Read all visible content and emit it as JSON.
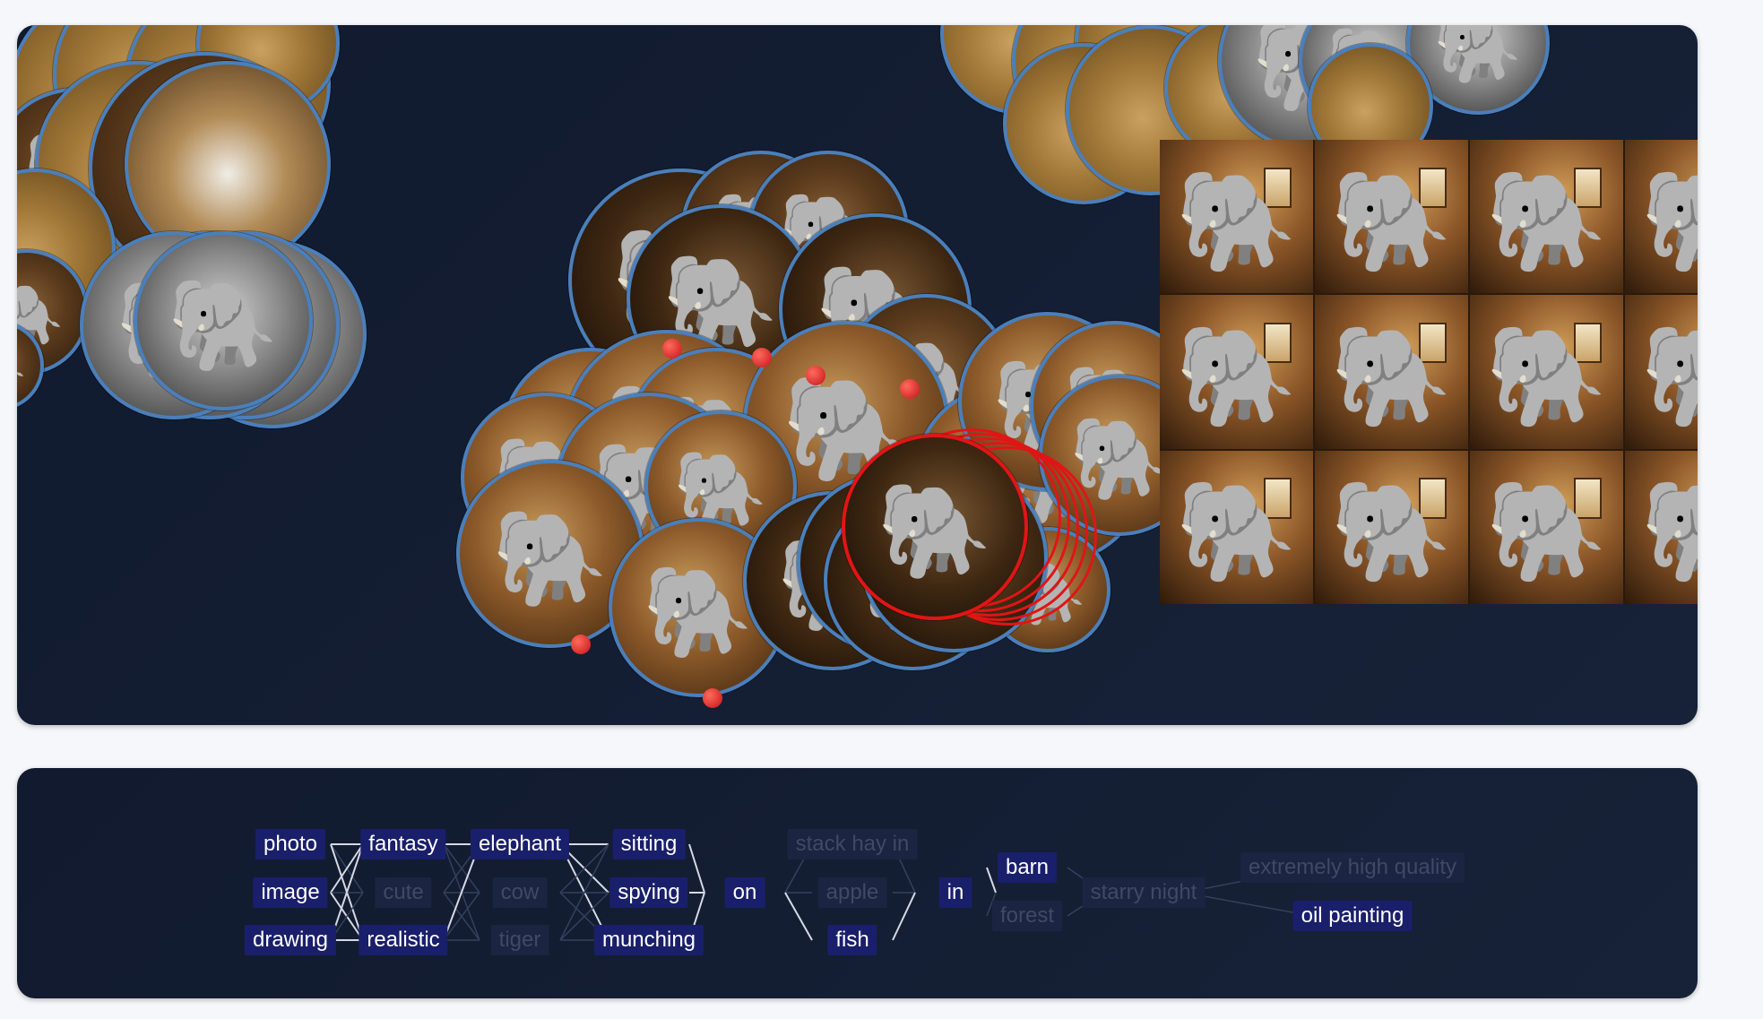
{
  "app": {
    "name": ""
  },
  "canvas": {
    "thumbnail_icon": "elephant-icon",
    "grid_cells": 12,
    "selected_color": "#e01515",
    "thumb_border_color": "#4a7fbb"
  },
  "prompt_graph": {
    "columns": [
      {
        "words": [
          {
            "text": "photo",
            "active": true
          },
          {
            "text": "image",
            "active": true
          },
          {
            "text": "drawing",
            "active": true
          }
        ]
      },
      {
        "words": [
          {
            "text": "fantasy",
            "active": true
          },
          {
            "text": "cute",
            "active": false
          },
          {
            "text": "realistic",
            "active": true
          }
        ]
      },
      {
        "words": [
          {
            "text": "elephant",
            "active": true
          },
          {
            "text": "cow",
            "active": false
          },
          {
            "text": "tiger",
            "active": false
          }
        ]
      },
      {
        "words": [
          {
            "text": "sitting",
            "active": true
          },
          {
            "text": "spying",
            "active": true
          },
          {
            "text": "munching",
            "active": true
          }
        ]
      },
      {
        "words": [
          {
            "text": "on",
            "active": true
          }
        ]
      },
      {
        "words": [
          {
            "text": "stack hay in",
            "active": false
          },
          {
            "text": "apple",
            "active": false
          },
          {
            "text": "fish",
            "active": true
          }
        ]
      },
      {
        "words": [
          {
            "text": "in",
            "active": true
          }
        ]
      },
      {
        "words": [
          {
            "text": "barn",
            "active": true
          },
          {
            "text": "forest",
            "active": false
          }
        ]
      },
      {
        "words": [
          {
            "text": "starry night",
            "active": false
          }
        ]
      },
      {
        "words": [
          {
            "text": "extremely high quality",
            "active": false
          },
          {
            "text": "oil painting",
            "active": true
          }
        ]
      }
    ],
    "active_color": "#1a1f6b",
    "inactive_color": "#3e4a66"
  }
}
